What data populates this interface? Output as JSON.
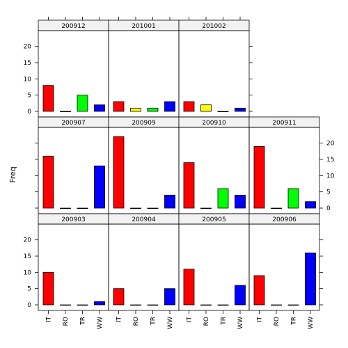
{
  "chart_data": {
    "type": "bar",
    "ylabel": "Freq",
    "xlabel": "",
    "ylim": [
      0,
      24
    ],
    "yticks": [
      0,
      5,
      10,
      15,
      20
    ],
    "categories": [
      "IT",
      "RO",
      "TR",
      "WW"
    ],
    "category_colors": [
      "#ff0000",
      "#ffff00",
      "#00ff00",
      "#0000ff"
    ],
    "strip_color": "#f2f2f2",
    "layout": "trellis 4 columns x 3 rows",
    "panels": [
      {
        "label": "200903",
        "values": [
          10,
          0,
          0,
          1
        ]
      },
      {
        "label": "200904",
        "values": [
          5,
          0,
          0,
          5
        ]
      },
      {
        "label": "200905",
        "values": [
          11,
          0,
          0,
          6
        ]
      },
      {
        "label": "200906",
        "values": [
          9,
          0,
          0,
          16
        ]
      },
      {
        "label": "200907",
        "values": [
          16,
          0,
          0,
          13
        ]
      },
      {
        "label": "200909",
        "values": [
          22,
          0,
          0,
          4
        ]
      },
      {
        "label": "200910",
        "values": [
          14,
          0,
          6,
          4
        ]
      },
      {
        "label": "200911",
        "values": [
          19,
          0,
          6,
          2
        ]
      },
      {
        "label": "200912",
        "values": [
          8,
          0,
          5,
          2
        ]
      },
      {
        "label": "201001",
        "values": [
          3,
          1,
          1,
          3
        ]
      },
      {
        "label": "201002",
        "values": [
          3,
          2,
          0,
          1
        ]
      }
    ]
  }
}
